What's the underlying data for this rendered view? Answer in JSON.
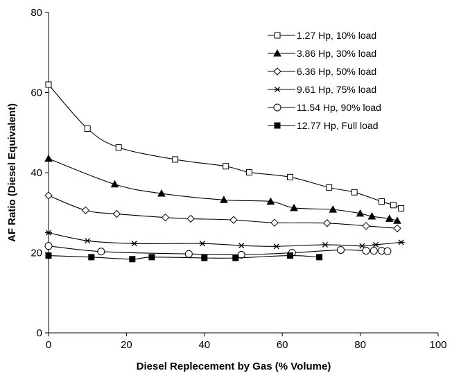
{
  "chart_data": {
    "type": "line",
    "title": "",
    "xlabel": "Diesel Replecement by Gas (% Volume)",
    "ylabel": "AF Ratio (Diesel Equivalent)",
    "xlim": [
      0,
      100
    ],
    "ylim": [
      0,
      80
    ],
    "xticks": [
      0,
      20,
      40,
      60,
      80,
      100
    ],
    "yticks": [
      0,
      20,
      40,
      60,
      80
    ],
    "grid": false,
    "legend_position": "top-right",
    "series": [
      {
        "name": "1.27 Hp, 10% load",
        "marker": "square-open",
        "x": [
          0,
          10,
          18,
          32.5,
          45.5,
          51.5,
          62,
          72,
          78.5,
          85.5,
          88.5,
          90.5
        ],
        "y": [
          62,
          51,
          46.3,
          43.3,
          41.6,
          40.1,
          38.9,
          36.3,
          35.1,
          32.8,
          31.9,
          31.1
        ]
      },
      {
        "name": "3.86 Hp, 30% load",
        "marker": "triangle-filled",
        "x": [
          0,
          17,
          29,
          45,
          57,
          63,
          73,
          80,
          83,
          87.5,
          89.5
        ],
        "y": [
          43.5,
          37.1,
          34.8,
          33.2,
          32.8,
          31.2,
          30.8,
          29.8,
          29.1,
          28.5,
          28
        ]
      },
      {
        "name": "6.36 Hp, 50% load",
        "marker": "diamond-open",
        "x": [
          0,
          9.5,
          17.5,
          30,
          36.5,
          47.5,
          58,
          71.5,
          81.5,
          89.5
        ],
        "y": [
          34.3,
          30.6,
          29.7,
          28.8,
          28.5,
          28.2,
          27.5,
          27.4,
          26.7,
          26.1
        ]
      },
      {
        "name": "9.61 Hp, 75% load",
        "marker": "star",
        "x": [
          0,
          10,
          22,
          39.5,
          49.5,
          58.5,
          71,
          80.5,
          84,
          90.5
        ],
        "y": [
          25,
          23,
          22.3,
          22.3,
          21.8,
          21.6,
          22,
          21.7,
          22,
          22.6
        ]
      },
      {
        "name": "11.54 Hp, 90% load",
        "marker": "circle-open",
        "x": [
          0,
          13.5,
          36,
          49.5,
          62.5,
          75,
          81.5,
          83.5,
          85.5,
          87
        ],
        "y": [
          21.7,
          20.3,
          19.7,
          19.5,
          20,
          20.7,
          20.5,
          20.5,
          20.5,
          20.4
        ]
      },
      {
        "name": "12.77 Hp, Full load",
        "marker": "square-filled",
        "x": [
          0,
          11,
          21.5,
          26.5,
          40,
          48,
          62,
          69.5
        ],
        "y": [
          19.3,
          18.9,
          18.4,
          18.9,
          18.7,
          18.7,
          19.3,
          18.9
        ]
      }
    ]
  }
}
